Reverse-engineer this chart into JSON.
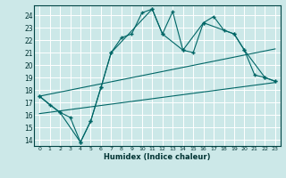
{
  "xlabel": "Humidex (Indice chaleur)",
  "bg_color": "#cce8e8",
  "grid_color": "#ffffff",
  "line_color": "#006666",
  "xlim": [
    -0.5,
    23.5
  ],
  "ylim": [
    13.5,
    24.8
  ],
  "xticks": [
    0,
    1,
    2,
    3,
    4,
    5,
    6,
    7,
    8,
    9,
    10,
    11,
    12,
    13,
    14,
    15,
    16,
    17,
    18,
    19,
    20,
    21,
    22,
    23
  ],
  "yticks": [
    14,
    15,
    16,
    17,
    18,
    19,
    20,
    21,
    22,
    23,
    24
  ],
  "series1_x": [
    0,
    1,
    2,
    3,
    4,
    5,
    6,
    7,
    8,
    9,
    10,
    11,
    12,
    13,
    14,
    15,
    16,
    17,
    18,
    19,
    20,
    21,
    22,
    23
  ],
  "series1_y": [
    17.5,
    16.8,
    16.2,
    15.8,
    13.8,
    15.5,
    18.2,
    21.0,
    22.2,
    22.5,
    24.2,
    24.5,
    22.5,
    24.3,
    21.2,
    21.0,
    23.4,
    23.9,
    22.8,
    22.5,
    21.2,
    19.2,
    19.0,
    18.7
  ],
  "series2_x": [
    0,
    2,
    4,
    5,
    6,
    7,
    11,
    12,
    14,
    16,
    19,
    20,
    22,
    23
  ],
  "series2_y": [
    17.5,
    16.2,
    13.8,
    15.5,
    18.2,
    21.0,
    24.5,
    22.5,
    21.2,
    23.4,
    22.5,
    21.2,
    19.0,
    18.7
  ],
  "series3_x": [
    0,
    23
  ],
  "series3_y": [
    17.5,
    21.3
  ],
  "series4_x": [
    0,
    23
  ],
  "series4_y": [
    16.1,
    18.6
  ]
}
